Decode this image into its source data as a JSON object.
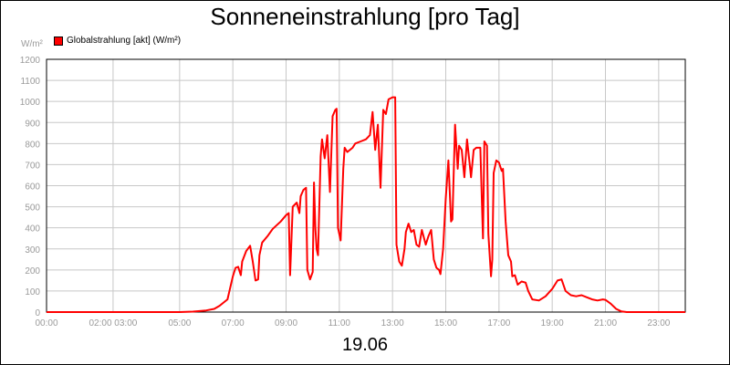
{
  "chart_data": {
    "type": "line",
    "title": "Sonneneinstrahlung [pro Tag]",
    "date": "19.06",
    "y_unit": "W/m²",
    "ylim": [
      0,
      1200
    ],
    "y_ticks": [
      0,
      100,
      200,
      300,
      400,
      500,
      600,
      700,
      800,
      900,
      1000,
      1100,
      1200
    ],
    "xlim": [
      0,
      24
    ],
    "x_ticks": [
      {
        "label": "00:00",
        "h": 0
      },
      {
        "label": "02:00 03:00",
        "h": 2.5
      },
      {
        "label": "05:00",
        "h": 5
      },
      {
        "label": "07:00",
        "h": 7
      },
      {
        "label": "09:00",
        "h": 9
      },
      {
        "label": "11:00",
        "h": 11
      },
      {
        "label": "13:00",
        "h": 13
      },
      {
        "label": "15:00",
        "h": 15
      },
      {
        "label": "17:00",
        "h": 17
      },
      {
        "label": "19:00",
        "h": 19
      },
      {
        "label": "21:00",
        "h": 21
      },
      {
        "label": "23:00",
        "h": 23
      }
    ],
    "grid": true,
    "legend_position": "top-left",
    "line_color": "#ff0000",
    "series": [
      {
        "name": "Globalstrahlung [akt] (W/m²)",
        "points": [
          [
            0,
            0
          ],
          [
            5.0,
            0
          ],
          [
            5.5,
            2
          ],
          [
            6.0,
            8
          ],
          [
            6.3,
            15
          ],
          [
            6.5,
            30
          ],
          [
            6.8,
            60
          ],
          [
            7.0,
            170
          ],
          [
            7.1,
            210
          ],
          [
            7.2,
            215
          ],
          [
            7.3,
            175
          ],
          [
            7.35,
            240
          ],
          [
            7.5,
            290
          ],
          [
            7.65,
            315
          ],
          [
            7.75,
            240
          ],
          [
            7.85,
            150
          ],
          [
            7.95,
            155
          ],
          [
            8.0,
            270
          ],
          [
            8.1,
            330
          ],
          [
            8.3,
            360
          ],
          [
            8.5,
            395
          ],
          [
            8.8,
            430
          ],
          [
            9.0,
            460
          ],
          [
            9.1,
            470
          ],
          [
            9.15,
            175
          ],
          [
            9.25,
            500
          ],
          [
            9.4,
            520
          ],
          [
            9.5,
            470
          ],
          [
            9.55,
            550
          ],
          [
            9.65,
            580
          ],
          [
            9.75,
            590
          ],
          [
            9.8,
            200
          ],
          [
            9.9,
            155
          ],
          [
            10.0,
            190
          ],
          [
            10.05,
            615
          ],
          [
            10.1,
            400
          ],
          [
            10.15,
            300
          ],
          [
            10.2,
            270
          ],
          [
            10.3,
            740
          ],
          [
            10.35,
            820
          ],
          [
            10.45,
            730
          ],
          [
            10.55,
            840
          ],
          [
            10.65,
            570
          ],
          [
            10.75,
            930
          ],
          [
            10.85,
            960
          ],
          [
            10.9,
            965
          ],
          [
            10.95,
            400
          ],
          [
            11.05,
            340
          ],
          [
            11.15,
            680
          ],
          [
            11.2,
            780
          ],
          [
            11.3,
            760
          ],
          [
            11.5,
            780
          ],
          [
            11.6,
            800
          ],
          [
            11.8,
            810
          ],
          [
            12.0,
            820
          ],
          [
            12.15,
            840
          ],
          [
            12.25,
            950
          ],
          [
            12.35,
            770
          ],
          [
            12.45,
            890
          ],
          [
            12.55,
            590
          ],
          [
            12.65,
            960
          ],
          [
            12.75,
            940
          ],
          [
            12.85,
            1010
          ],
          [
            13.0,
            1020
          ],
          [
            13.1,
            1020
          ],
          [
            13.15,
            320
          ],
          [
            13.25,
            240
          ],
          [
            13.35,
            220
          ],
          [
            13.45,
            300
          ],
          [
            13.5,
            380
          ],
          [
            13.6,
            420
          ],
          [
            13.7,
            380
          ],
          [
            13.8,
            390
          ],
          [
            13.9,
            320
          ],
          [
            14.0,
            310
          ],
          [
            14.1,
            390
          ],
          [
            14.25,
            320
          ],
          [
            14.35,
            360
          ],
          [
            14.45,
            390
          ],
          [
            14.55,
            250
          ],
          [
            14.65,
            210
          ],
          [
            14.75,
            200
          ],
          [
            14.8,
            180
          ],
          [
            14.9,
            300
          ],
          [
            15.0,
            540
          ],
          [
            15.1,
            720
          ],
          [
            15.2,
            430
          ],
          [
            15.25,
            440
          ],
          [
            15.35,
            890
          ],
          [
            15.45,
            680
          ],
          [
            15.5,
            790
          ],
          [
            15.6,
            770
          ],
          [
            15.7,
            640
          ],
          [
            15.8,
            820
          ],
          [
            15.9,
            700
          ],
          [
            15.95,
            640
          ],
          [
            16.05,
            770
          ],
          [
            16.15,
            780
          ],
          [
            16.3,
            780
          ],
          [
            16.4,
            350
          ],
          [
            16.45,
            810
          ],
          [
            16.55,
            790
          ],
          [
            16.6,
            370
          ],
          [
            16.7,
            170
          ],
          [
            16.75,
            250
          ],
          [
            16.8,
            660
          ],
          [
            16.9,
            720
          ],
          [
            17.0,
            710
          ],
          [
            17.1,
            670
          ],
          [
            17.15,
            680
          ],
          [
            17.25,
            430
          ],
          [
            17.35,
            270
          ],
          [
            17.45,
            240
          ],
          [
            17.5,
            170
          ],
          [
            17.6,
            175
          ],
          [
            17.7,
            130
          ],
          [
            17.85,
            145
          ],
          [
            18.0,
            140
          ],
          [
            18.1,
            100
          ],
          [
            18.25,
            60
          ],
          [
            18.5,
            55
          ],
          [
            18.75,
            75
          ],
          [
            19.0,
            110
          ],
          [
            19.2,
            150
          ],
          [
            19.35,
            155
          ],
          [
            19.5,
            100
          ],
          [
            19.7,
            80
          ],
          [
            19.9,
            75
          ],
          [
            20.1,
            80
          ],
          [
            20.3,
            70
          ],
          [
            20.5,
            60
          ],
          [
            20.7,
            55
          ],
          [
            20.9,
            60
          ],
          [
            21.0,
            58
          ],
          [
            21.2,
            40
          ],
          [
            21.4,
            15
          ],
          [
            21.6,
            3
          ],
          [
            21.8,
            0
          ],
          [
            24.0,
            0
          ]
        ]
      }
    ]
  }
}
